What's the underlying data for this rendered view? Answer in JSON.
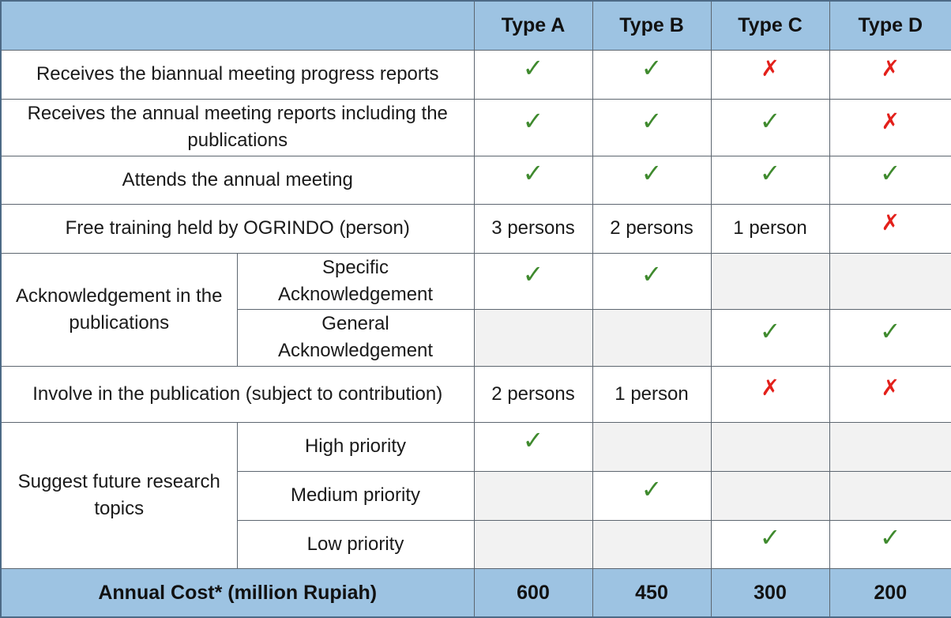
{
  "header": {
    "blank": "",
    "types": [
      "Type A",
      "Type B",
      "Type C",
      "Type D"
    ]
  },
  "rows": {
    "biannual": {
      "label": "Receives the biannual meeting progress reports",
      "marks": [
        "check",
        "check",
        "cross",
        "cross"
      ]
    },
    "annual_reports": {
      "label": "Receives the annual meeting reports including the publications",
      "marks": [
        "check",
        "check",
        "check",
        "cross"
      ]
    },
    "attends": {
      "label": "Attends the annual meeting",
      "marks": [
        "check",
        "check",
        "check",
        "check"
      ]
    },
    "training": {
      "label": "Free training held by OGRINDO (person)",
      "values": [
        "3 persons",
        "2 persons",
        "1 person"
      ],
      "mark_d": "cross"
    },
    "acknowledgement": {
      "label": "Acknowledgement in the publications",
      "specific": {
        "label": "Specific Acknowledgement",
        "marks": [
          "check",
          "check",
          "none",
          "none"
        ]
      },
      "general": {
        "label": "General Acknowledgement",
        "marks": [
          "none",
          "none",
          "check",
          "check"
        ]
      }
    },
    "involve": {
      "label": "Involve in the publication (subject to contribution)",
      "values": [
        "2 persons",
        "1 person"
      ],
      "marks_cd": [
        "cross",
        "cross"
      ]
    },
    "research": {
      "label": "Suggest future research topics",
      "high": {
        "label": "High priority",
        "marks": [
          "check",
          "none",
          "none",
          "none"
        ]
      },
      "medium": {
        "label": "Medium priority",
        "marks": [
          "none",
          "check",
          "none",
          "none"
        ]
      },
      "low": {
        "label": "Low priority",
        "marks": [
          "none",
          "none",
          "check",
          "check"
        ]
      }
    }
  },
  "footer": {
    "label": "Annual Cost* (million Rupiah)",
    "values": [
      "600",
      "450",
      "300",
      "200"
    ]
  },
  "icons": {
    "check": "✓",
    "cross": "✗"
  },
  "colors": {
    "header_bg": "#9dc3e2",
    "check": "#3f8a2e",
    "cross": "#e3201b",
    "empty_cell": "#f2f2f2"
  }
}
